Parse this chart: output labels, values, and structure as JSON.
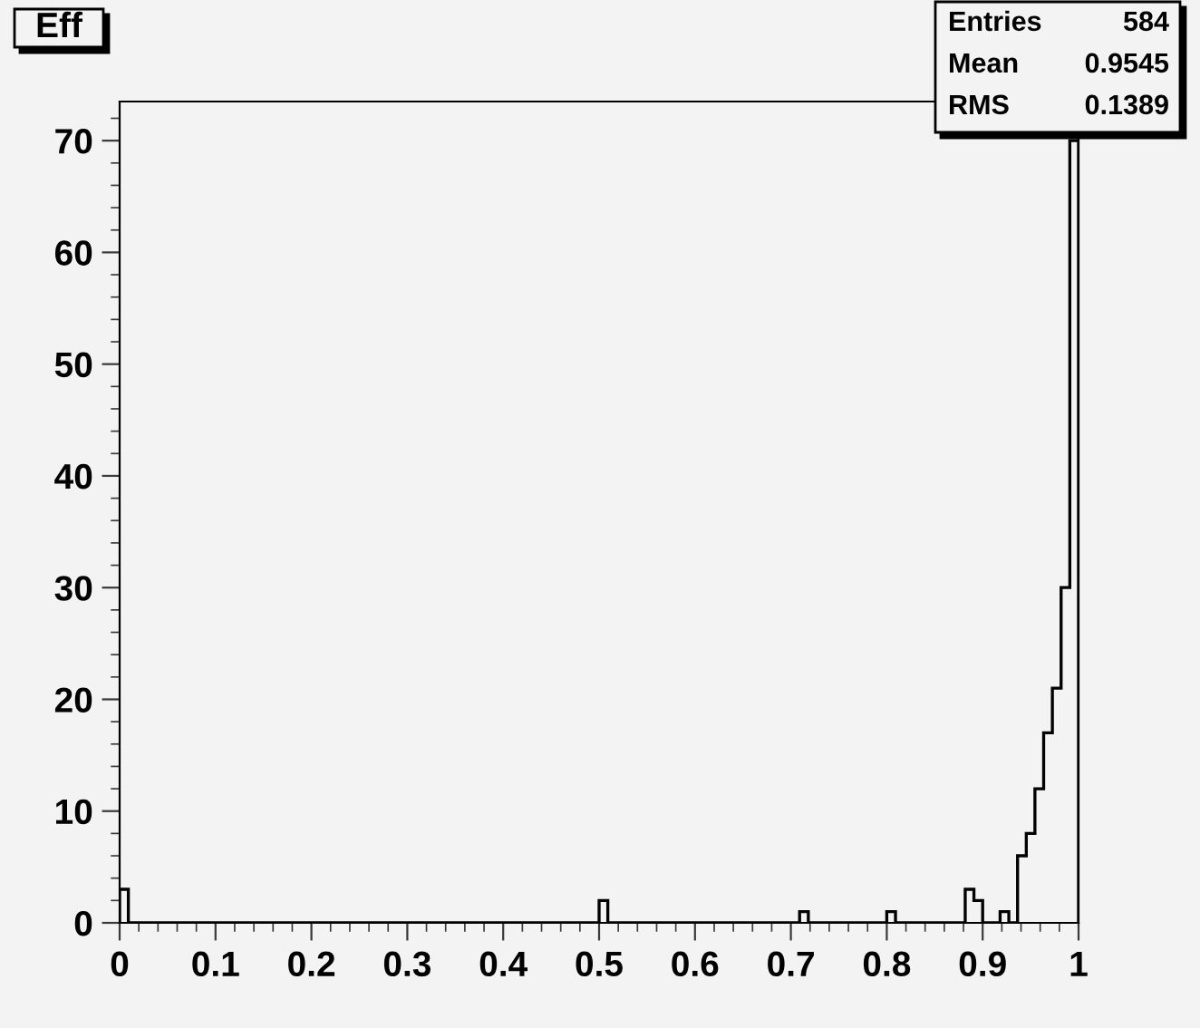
{
  "chart_data": {
    "type": "histogram",
    "title": "Eff",
    "bins": [
      0,
      0.0091,
      0.0182,
      0.0273,
      0.0364,
      0.0455,
      0.0545,
      0.0636,
      0.0727,
      0.0818,
      0.0909,
      0.1,
      0.1091,
      0.1182,
      0.1273,
      0.1364,
      0.1455,
      0.1545,
      0.1636,
      0.1727,
      0.1818,
      0.1909,
      0.2,
      0.2091,
      0.2182,
      0.2273,
      0.2364,
      0.2455,
      0.2545,
      0.2636,
      0.2727,
      0.2818,
      0.2909,
      0.3,
      0.3091,
      0.3182,
      0.3273,
      0.3364,
      0.3455,
      0.3545,
      0.3636,
      0.3727,
      0.3818,
      0.3909,
      0.4,
      0.4091,
      0.4182,
      0.4273,
      0.4364,
      0.4455,
      0.4545,
      0.4636,
      0.4727,
      0.4818,
      0.4909,
      0.5,
      0.5091,
      0.5182,
      0.5273,
      0.5364,
      0.5455,
      0.5545,
      0.5636,
      0.5727,
      0.5818,
      0.5909,
      0.6,
      0.6091,
      0.6182,
      0.6273,
      0.6364,
      0.6455,
      0.6545,
      0.6636,
      0.6727,
      0.6818,
      0.6909,
      0.7,
      0.7091,
      0.7182,
      0.7273,
      0.7364,
      0.7455,
      0.7545,
      0.7636,
      0.7727,
      0.7818,
      0.7909,
      0.8,
      0.8091,
      0.8182,
      0.8273,
      0.8364,
      0.8455,
      0.8545,
      0.8636,
      0.8727,
      0.8818,
      0.8909,
      0.9,
      0.9091,
      0.9182,
      0.9273,
      0.9364,
      0.9455,
      0.9545,
      0.9636,
      0.9727,
      0.9818,
      0.9909,
      1
    ],
    "values": [
      3,
      0,
      0,
      0,
      0,
      0,
      0,
      0,
      0,
      0,
      0,
      0,
      0,
      0,
      0,
      0,
      0,
      0,
      0,
      0,
      0,
      0,
      0,
      0,
      0,
      0,
      0,
      0,
      0,
      0,
      0,
      0,
      0,
      0,
      0,
      0,
      0,
      0,
      0,
      0,
      0,
      0,
      0,
      0,
      0,
      0,
      0,
      0,
      0,
      0,
      0,
      0,
      0,
      0,
      0,
      2,
      0,
      0,
      0,
      0,
      0,
      0,
      0,
      0,
      0,
      0,
      0,
      0,
      0,
      0,
      0,
      0,
      0,
      0,
      0,
      0,
      0,
      0,
      1,
      0,
      0,
      0,
      0,
      0,
      0,
      0,
      0,
      0,
      1,
      0,
      0,
      0,
      0,
      0,
      0,
      0,
      0,
      3,
      2,
      0,
      0,
      1,
      0,
      6,
      8,
      12,
      17,
      21,
      30,
      70
    ],
    "color": "#000000",
    "xlim": [
      0,
      1
    ],
    "xticks": [
      0,
      0.1,
      0.2,
      0.3,
      0.4,
      0.5,
      0.6,
      0.7,
      0.8,
      0.9,
      1
    ],
    "ylim": [
      0,
      73.5
    ],
    "yticks": [
      0,
      10,
      20,
      30,
      40,
      50,
      60,
      70
    ],
    "annotations": [
      "Entries 584",
      "Mean 0.9545",
      "RMS 0.1389"
    ],
    "grid": false
  }
}
